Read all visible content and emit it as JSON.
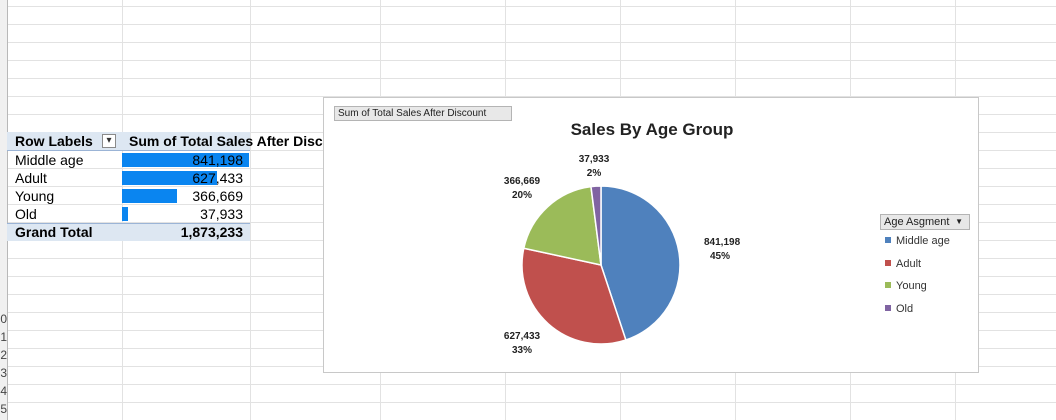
{
  "row_numbers": [
    "0",
    "1",
    "2",
    "3",
    "4",
    "5"
  ],
  "pivot": {
    "header_row_label": "Row Labels",
    "filter_icon": "sort-filter-icon",
    "header_value_label": "Sum of Total Sales After Discount",
    "rows": [
      {
        "label": "Middle age",
        "value": "841,198",
        "value_num": 841198
      },
      {
        "label": "Adult",
        "value": "627,433",
        "value_num": 627433
      },
      {
        "label": "Young",
        "value": "366,669",
        "value_num": 366669
      },
      {
        "label": "Old",
        "value": "37,933",
        "value_num": 37933
      }
    ],
    "grand_total_label": "Grand Total",
    "grand_total_value": "1,873,233",
    "data_bar_color": "#0a85f0"
  },
  "chart": {
    "field_button_label": "Sum of Total Sales After Discount",
    "legend_button_label": "Age Asgment",
    "legend_caret_icon": "dropdown-caret-icon"
  },
  "chart_data": {
    "type": "pie",
    "title": "Sales By Age Group",
    "legend_position": "right",
    "categories": [
      "Middle age",
      "Adult",
      "Young",
      "Old"
    ],
    "values": [
      841198,
      627433,
      366669,
      37933
    ],
    "value_labels": [
      "841,198",
      "627,433",
      "366,669",
      "37,933"
    ],
    "percent_labels": [
      "45%",
      "33%",
      "20%",
      "2%"
    ],
    "colors": [
      "#4f81bd",
      "#c0504d",
      "#9bbb59",
      "#8064a2"
    ]
  }
}
